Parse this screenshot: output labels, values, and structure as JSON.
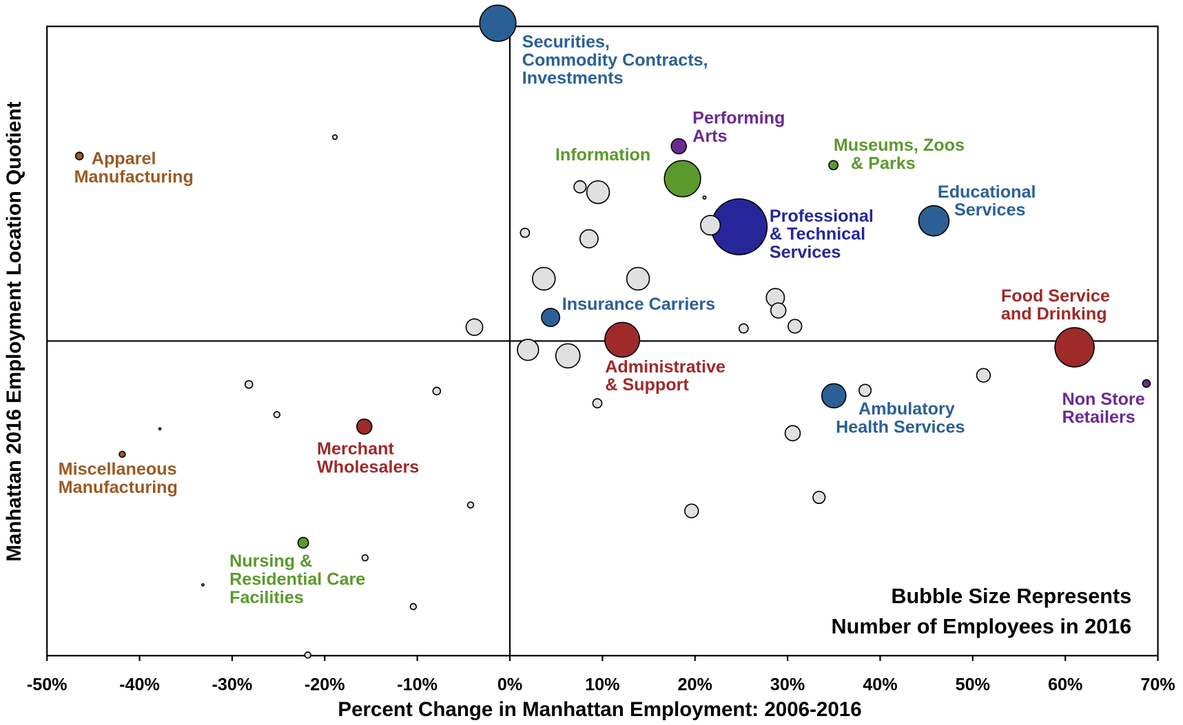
{
  "chart_data": {
    "type": "bubble",
    "x_label": "Percent Change in Manhattan Employment: 2006-2016",
    "y_label": "Manhattan 2016 Employment Location Quotient",
    "annotation": [
      "Bubble Size Represents",
      "Number of Employees in 2016"
    ],
    "xlim": [
      -50,
      70
    ],
    "ylim": [
      0,
      2
    ],
    "reference_x": 0,
    "reference_y": 1,
    "xticks": [
      {
        "value": -50,
        "label": "-50%"
      },
      {
        "value": -40,
        "label": "-40%"
      },
      {
        "value": -30,
        "label": "-30%"
      },
      {
        "value": -20,
        "label": "-20%"
      },
      {
        "value": -10,
        "label": "-10%"
      },
      {
        "value": 0,
        "label": "0%"
      },
      {
        "value": 10,
        "label": "10%"
      },
      {
        "value": 20,
        "label": "20%"
      },
      {
        "value": 30,
        "label": "30%"
      },
      {
        "value": 40,
        "label": "40%"
      },
      {
        "value": 50,
        "label": "50%"
      },
      {
        "value": 60,
        "label": "60%"
      },
      {
        "value": 70,
        "label": "70%"
      }
    ],
    "x": [
      -1.3,
      -46.5,
      18.25,
      18.65,
      34.95,
      45.8,
      24.77,
      4.4,
      12.14,
      61.0,
      68.76,
      35.0,
      -15.72,
      -41.87,
      -22.32,
      -18.9,
      7.58,
      9.53,
      21.02,
      21.67,
      1.63,
      8.55,
      3.67,
      13.85,
      28.68,
      29.0,
      25.25,
      30.79,
      -3.83,
      1.96,
      6.27,
      51.16,
      38.37,
      9.45,
      -28.19,
      -7.9,
      -25.17,
      -37.8,
      30.55,
      -4.24,
      33.4,
      19.63,
      -15.64,
      -33.16,
      -10.43,
      -21.83
    ],
    "y": [
      2.01,
      1.588,
      1.619,
      1.516,
      1.559,
      1.382,
      1.363,
      1.075,
      1.004,
      0.98,
      0.865,
      0.826,
      0.728,
      0.64,
      0.359,
      1.648,
      1.49,
      1.473,
      1.456,
      1.368,
      1.344,
      1.325,
      1.198,
      1.198,
      1.138,
      1.097,
      1.04,
      1.047,
      1.044,
      0.972,
      0.953,
      0.891,
      0.843,
      0.802,
      0.862,
      0.841,
      0.766,
      0.721,
      0.707,
      0.479,
      0.503,
      0.46,
      0.311,
      0.225,
      0.156,
      0.002
    ],
    "sizes": [
      576,
      25,
      100,
      576,
      36,
      400,
      1369,
      144,
      529,
      676,
      25,
      256,
      100,
      16,
      49,
      9,
      64,
      225,
      4,
      169,
      36,
      144,
      225,
      225,
      144,
      100,
      36,
      81,
      121,
      196,
      256,
      81,
      64,
      36,
      25,
      25,
      16,
      2,
      100,
      16,
      64,
      81,
      16,
      2,
      16,
      16
    ],
    "colors": [
      "#2b6096",
      "#9a5a24",
      "#6a2a92",
      "#5a9a2c",
      "#5a9a2c",
      "#2b6096",
      "#26269a",
      "#2b6096",
      "#9e2a2a",
      "#9e2a2a",
      "#6a2a92",
      "#2b6096",
      "#9e2a2a",
      "#9a5a24",
      "#5a9a2c",
      "#e0e0e0",
      "#e0e0e0",
      "#e0e0e0",
      "#e0e0e0",
      "#e0e0e0",
      "#e0e0e0",
      "#e0e0e0",
      "#e0e0e0",
      "#e0e0e0",
      "#e0e0e0",
      "#e0e0e0",
      "#e0e0e0",
      "#e0e0e0",
      "#e0e0e0",
      "#e0e0e0",
      "#e0e0e0",
      "#e0e0e0",
      "#e0e0e0",
      "#e0e0e0",
      "#e0e0e0",
      "#e0e0e0",
      "#e0e0e0",
      "#e0e0e0",
      "#e0e0e0",
      "#e0e0e0",
      "#e0e0e0",
      "#e0e0e0",
      "#e0e0e0",
      "#e0e0e0",
      "#e0e0e0",
      "#e0e0e0"
    ],
    "labels": [
      [
        "Securities,",
        "Commodity Contracts,",
        "Investments"
      ],
      [
        "Apparel",
        "Manufacturing"
      ],
      [
        "Performing",
        "Arts"
      ],
      [
        "Information"
      ],
      [
        "Museums, Zoos",
        "& Parks"
      ],
      [
        "Educational",
        "Services"
      ],
      [
        "Professional",
        "& Technical",
        "Services"
      ],
      [
        "Insurance Carriers"
      ],
      [
        "Administrative",
        "& Support"
      ],
      [
        "Food Service",
        "and Drinking"
      ],
      [
        "Non Store",
        "Retailers"
      ],
      [
        "Ambulatory",
        "Health Services"
      ],
      [
        "Merchant",
        "Wholesalers"
      ],
      [
        "Miscellaneous",
        "Manufacturing"
      ],
      [
        "Nursing &",
        "Residential Care",
        "Facilities"
      ],
      null,
      null,
      null,
      null,
      null,
      null,
      null,
      null,
      null,
      null,
      null,
      null,
      null,
      null,
      null,
      null,
      null,
      null,
      null,
      null,
      null,
      null,
      null,
      null,
      null,
      null,
      null,
      null,
      null,
      null,
      null
    ]
  }
}
